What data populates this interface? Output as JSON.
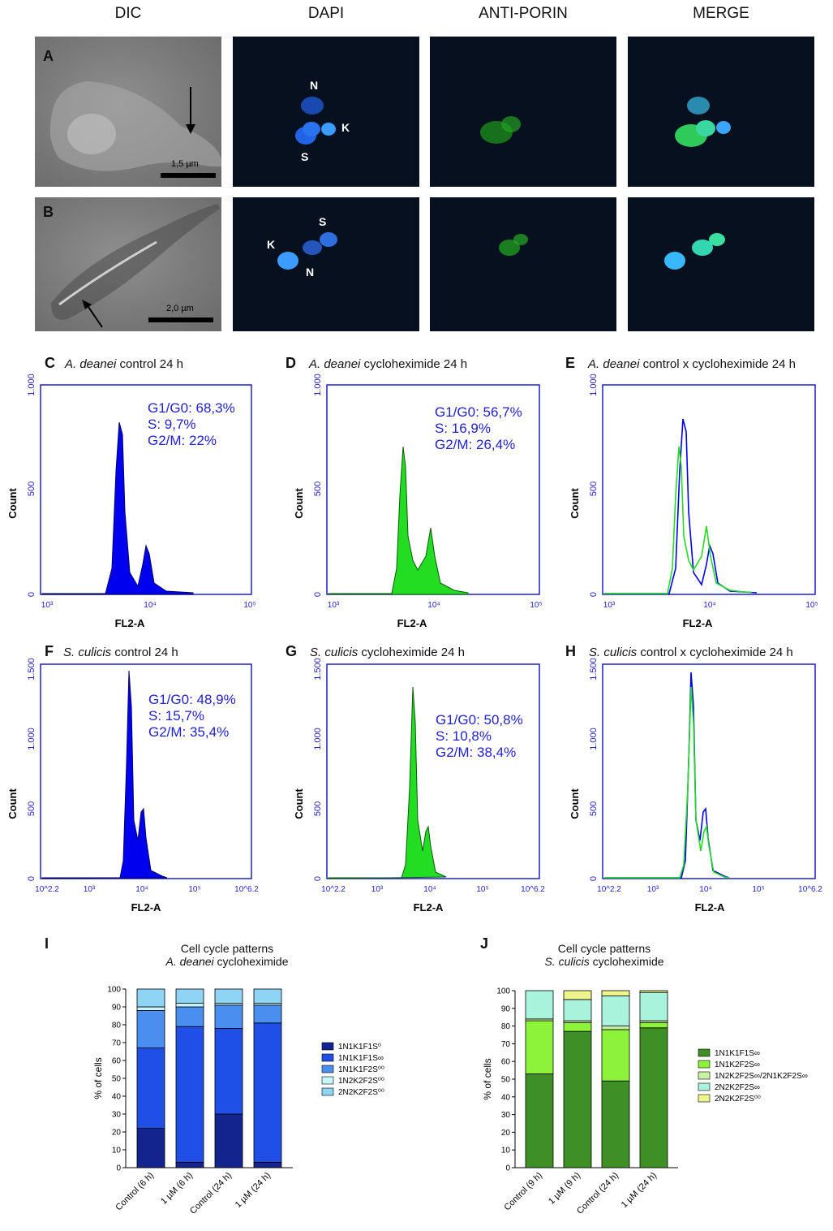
{
  "column_headers": [
    "DIC",
    "DAPI",
    "ANTI-PORIN",
    "MERGE"
  ],
  "micrographs": {
    "row_a": {
      "panel": "A",
      "scale": "1,5 µm",
      "dapi_labels": [
        "N",
        "K",
        "S"
      ]
    },
    "row_b": {
      "panel": "B",
      "scale": "2,0 µm",
      "dapi_labels": [
        "S",
        "K",
        "N"
      ]
    }
  },
  "colors": {
    "blue": "#0000ee",
    "green": "#22dd22",
    "axis": "#1f1fcc",
    "stats": "#2222cc"
  },
  "flow": {
    "C": {
      "letter": "C",
      "species": "A. deanei",
      "rest": " control 24 h",
      "stats": [
        "G1/G0: 68,3%",
        "S: 9,7%",
        "G2/M: 22%"
      ]
    },
    "D": {
      "letter": "D",
      "species": "A. deanei",
      "rest": "  cycloheximide 24 h",
      "stats": [
        "G1/G0: 56,7%",
        "S: 16,9%",
        "G2/M: 26,4%"
      ]
    },
    "E": {
      "letter": "E",
      "species": "A. deanei",
      "rest": " control x cycloheximide 24 h"
    },
    "F": {
      "letter": "F",
      "species": "S. culicis",
      "rest": " control 24 h",
      "stats": [
        "G1/G0: 48,9%",
        "S: 15,7%",
        "G2/M: 35,4%"
      ]
    },
    "G": {
      "letter": "G",
      "species": "S. culicis",
      "rest": " cycloheximide 24 h",
      "stats": [
        "G1/G0: 50,8%",
        "S: 10,8%",
        "G2/M: 38,4%"
      ]
    },
    "H": {
      "letter": "H",
      "species": "S. culicis",
      "rest": " control x cycloheximide 24 h"
    },
    "axis": {
      "xlabel": "FL2-A",
      "ylabel": "Count",
      "ad_yticks": [
        "0",
        "500",
        "1.000"
      ],
      "ad_xticks": [
        "10³",
        "10⁴",
        "10⁵"
      ],
      "sc_yticks": [
        "0",
        "500",
        "1.000",
        "1.500"
      ],
      "sc_xticks": [
        "10^2.2",
        "10³",
        "10⁴",
        "10⁵",
        "10^6.2"
      ]
    }
  },
  "chart_data": [
    {
      "type": "bar",
      "panel": "I",
      "title": "Cell cycle patterns",
      "subtitle_species": "A. deanei",
      "subtitle_rest": " cycloheximide",
      "ylabel": "% of cells",
      "ylim": [
        0,
        100
      ],
      "yticks": [
        0,
        10,
        20,
        30,
        40,
        50,
        60,
        70,
        80,
        90,
        100
      ],
      "categories": [
        "Control (6 h)",
        "1 µM (6 h)",
        "Control (24 h)",
        "1 µM (24 h)"
      ],
      "stacked": true,
      "series": [
        {
          "name": "1N1K1F1S⁰",
          "color": "#14248f",
          "values": [
            22,
            3,
            30,
            3
          ]
        },
        {
          "name": "1N1K1F1S∞",
          "color": "#1f4fe6",
          "values": [
            45,
            76,
            48,
            78
          ]
        },
        {
          "name": "1N1K1F2S⁰⁰",
          "color": "#4a8ef0",
          "values": [
            21,
            11,
            13,
            10
          ]
        },
        {
          "name": "1N2K2F2S⁰⁰",
          "color": "#c8f4fb",
          "values": [
            2,
            2,
            1,
            1
          ]
        },
        {
          "name": "2N2K2F2S⁰⁰",
          "color": "#8fd3f5",
          "values": [
            10,
            8,
            8,
            8
          ]
        }
      ]
    },
    {
      "type": "bar",
      "panel": "J",
      "title": "Cell cycle patterns",
      "subtitle_species": "S. culicis",
      "subtitle_rest": " cycloheximide",
      "ylabel": "% of cells",
      "ylim": [
        0,
        100
      ],
      "yticks": [
        0,
        10,
        20,
        30,
        40,
        50,
        60,
        70,
        80,
        90,
        100
      ],
      "categories": [
        "Control (9 h)",
        "1 µM (9 h)",
        "Control (24 h)",
        "1 µM (24 h)"
      ],
      "stacked": true,
      "series": [
        {
          "name": "1N1K1F1S∞",
          "color": "#3e8f26",
          "values": [
            53,
            77,
            49,
            79
          ]
        },
        {
          "name": "1N1K2F2S∞",
          "color": "#8cf23a",
          "values": [
            30,
            5,
            29,
            3
          ]
        },
        {
          "name": "1N2K2F2S∞/2N1K2F2S∞",
          "color": "#c9f0a4",
          "values": [
            1,
            1,
            2,
            1
          ]
        },
        {
          "name": "2N2K2F2S∞",
          "color": "#a9f2dc",
          "values": [
            16,
            12,
            17,
            16
          ]
        },
        {
          "name": "2N2K2F2S⁰⁰",
          "color": "#eef58c",
          "values": [
            0,
            5,
            3,
            1
          ]
        }
      ]
    }
  ]
}
